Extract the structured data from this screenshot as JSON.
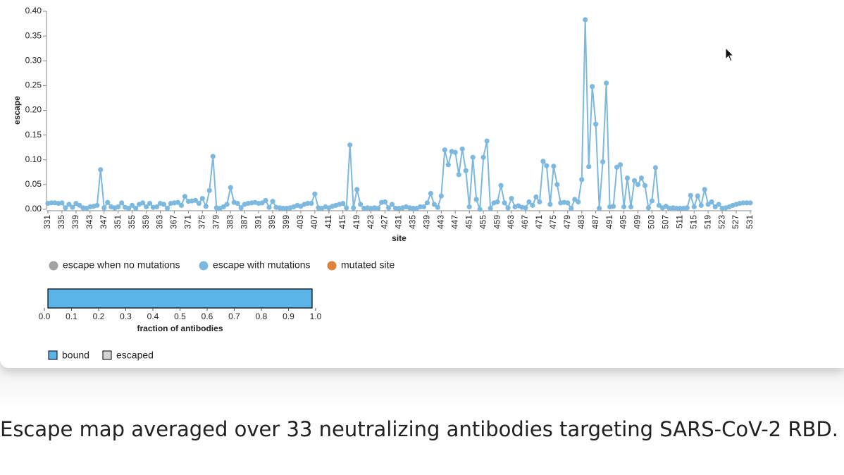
{
  "chart_data": [
    {
      "type": "line",
      "xlabel": "site",
      "ylabel": "escape",
      "x": [
        331,
        332,
        333,
        334,
        335,
        336,
        337,
        338,
        339,
        340,
        341,
        342,
        343,
        344,
        345,
        346,
        347,
        348,
        349,
        350,
        351,
        352,
        353,
        354,
        355,
        356,
        357,
        358,
        359,
        360,
        361,
        362,
        363,
        364,
        365,
        366,
        367,
        368,
        369,
        370,
        371,
        372,
        373,
        374,
        375,
        376,
        377,
        378,
        379,
        380,
        381,
        382,
        383,
        384,
        385,
        386,
        387,
        388,
        389,
        390,
        391,
        392,
        393,
        394,
        395,
        396,
        397,
        398,
        399,
        400,
        401,
        402,
        403,
        404,
        405,
        406,
        407,
        408,
        409,
        410,
        411,
        412,
        413,
        414,
        415,
        416,
        417,
        418,
        419,
        420,
        421,
        422,
        423,
        424,
        425,
        426,
        427,
        428,
        429,
        430,
        431,
        432,
        433,
        434,
        435,
        436,
        437,
        438,
        439,
        440,
        441,
        442,
        443,
        444,
        445,
        446,
        447,
        448,
        449,
        450,
        451,
        452,
        453,
        454,
        455,
        456,
        457,
        458,
        459,
        460,
        461,
        462,
        463,
        464,
        465,
        466,
        467,
        468,
        469,
        470,
        471,
        472,
        473,
        474,
        475,
        476,
        477,
        478,
        479,
        480,
        481,
        482,
        483,
        484,
        485,
        486,
        487,
        488,
        489,
        490,
        491,
        492,
        493,
        494,
        495,
        496,
        497,
        498,
        499,
        500,
        501,
        502,
        503,
        504,
        505,
        506,
        507,
        508,
        509,
        510,
        511,
        512,
        513,
        514,
        515,
        516,
        517,
        518,
        519,
        520,
        521,
        522,
        523,
        524,
        525,
        526,
        527,
        528,
        529,
        530,
        531
      ],
      "series": [
        {
          "color": "#7db9de",
          "values": [
            0.012,
            0.013,
            0.013,
            0.012,
            0.013,
            0.003,
            0.01,
            0.004,
            0.012,
            0.008,
            0.003,
            0.002,
            0.005,
            0.006,
            0.008,
            0.08,
            0.003,
            0.014,
            0.005,
            0.003,
            0.005,
            0.013,
            0.004,
            0.002,
            0.008,
            0.002,
            0.01,
            0.013,
            0.005,
            0.012,
            0.004,
            0.005,
            0.012,
            0.01,
            0.002,
            0.012,
            0.013,
            0.014,
            0.008,
            0.026,
            0.016,
            0.017,
            0.018,
            0.012,
            0.022,
            0.006,
            0.038,
            0.107,
            0.003,
            0.002,
            0.005,
            0.01,
            0.044,
            0.014,
            0.012,
            0.003,
            0.01,
            0.012,
            0.013,
            0.014,
            0.012,
            0.013,
            0.018,
            0.004,
            0.016,
            0.004,
            0.003,
            0.002,
            0.002,
            0.003,
            0.005,
            0.008,
            0.006,
            0.01,
            0.012,
            0.012,
            0.031,
            0.003,
            0.002,
            0.005,
            0.003,
            0.006,
            0.008,
            0.01,
            0.012,
            0.003,
            0.13,
            0.003,
            0.04,
            0.01,
            0.002,
            0.003,
            0.002,
            0.003,
            0.002,
            0.014,
            0.015,
            0.003,
            0.01,
            0.002,
            0.002,
            0.003,
            0.005,
            0.003,
            0.002,
            0.002,
            0.005,
            0.005,
            0.013,
            0.032,
            0.01,
            0.004,
            0.027,
            0.12,
            0.09,
            0.117,
            0.115,
            0.07,
            0.122,
            0.078,
            0.005,
            0.105,
            0.02,
            0,
            0.105,
            0.138,
            0.002,
            0.013,
            0.015,
            0.048,
            0.013,
            0.003,
            0.022,
            0.005,
            0.007,
            0.004,
            0.003,
            0.015,
            0.008,
            0.025,
            0.015,
            0.097,
            0.088,
            0.01,
            0.087,
            0.05,
            0.013,
            0.014,
            0.013,
            0.002,
            0.02,
            0.015,
            0.06,
            0.383,
            0.086,
            0.248,
            0.172,
            0.002,
            0.096,
            0.255,
            0.005,
            0.006,
            0.085,
            0.09,
            0.005,
            0.063,
            0.005,
            0.058,
            0.05,
            0.063,
            0.048,
            0.003,
            0.017,
            0.084,
            0.008,
            0.003,
            0.006,
            0.002,
            0.003,
            0.002,
            0.002,
            0.002,
            0.003,
            0.028,
            0.005,
            0.027,
            0.008,
            0.04,
            0.01,
            0.015,
            0.005,
            0.01,
            0.002,
            0.003,
            0.005,
            0.008,
            0.01,
            0.012,
            0.013,
            0.013,
            0.013
          ]
        }
      ],
      "xlim": [
        331,
        531
      ],
      "xticks": [
        331,
        335,
        339,
        343,
        347,
        351,
        355,
        359,
        363,
        367,
        371,
        375,
        379,
        383,
        387,
        391,
        395,
        399,
        403,
        407,
        411,
        415,
        419,
        423,
        427,
        431,
        435,
        439,
        443,
        447,
        451,
        455,
        459,
        463,
        467,
        471,
        475,
        479,
        483,
        487,
        491,
        495,
        499,
        503,
        507,
        511,
        515,
        519,
        523,
        527,
        531
      ],
      "ylim": [
        0,
        0.4
      ],
      "yticks": [
        {
          "value": 0,
          "label": "0.00"
        },
        0.05,
        {
          "value": 0.1,
          "label": "0.10"
        },
        0.15,
        {
          "value": 0.2,
          "label": "0.20"
        },
        0.25,
        {
          "value": 0.3,
          "label": "0.30"
        },
        0.35,
        {
          "value": 0.4,
          "label": "0.40"
        }
      ],
      "legend": [
        {
          "name": "escape when no mutations",
          "color": "#a3a3a3"
        },
        {
          "name": "escape with mutations",
          "color": "#7db9de"
        },
        {
          "name": "mutated site",
          "color": "#e0813c"
        }
      ]
    },
    {
      "type": "hbar",
      "xlabel": "fraction of antibodies",
      "values": [
        1.0
      ],
      "color": "#5ab4e8",
      "xlim": [
        0,
        1
      ],
      "xticks": [
        {
          "value": 0,
          "label": "0.0"
        },
        0.1,
        0.2,
        0.3,
        0.4,
        0.5,
        0.6,
        0.7,
        0.8,
        0.9,
        {
          "value": 1,
          "label": "1.0"
        }
      ],
      "legend": [
        {
          "name": "bound",
          "color": "#5ab4e8"
        },
        {
          "name": "escaped",
          "color": "#d3d3d3"
        }
      ]
    }
  ],
  "caption": "Escape map averaged over 33 neutralizing antibodies targeting SARS-CoV-2 RBD."
}
